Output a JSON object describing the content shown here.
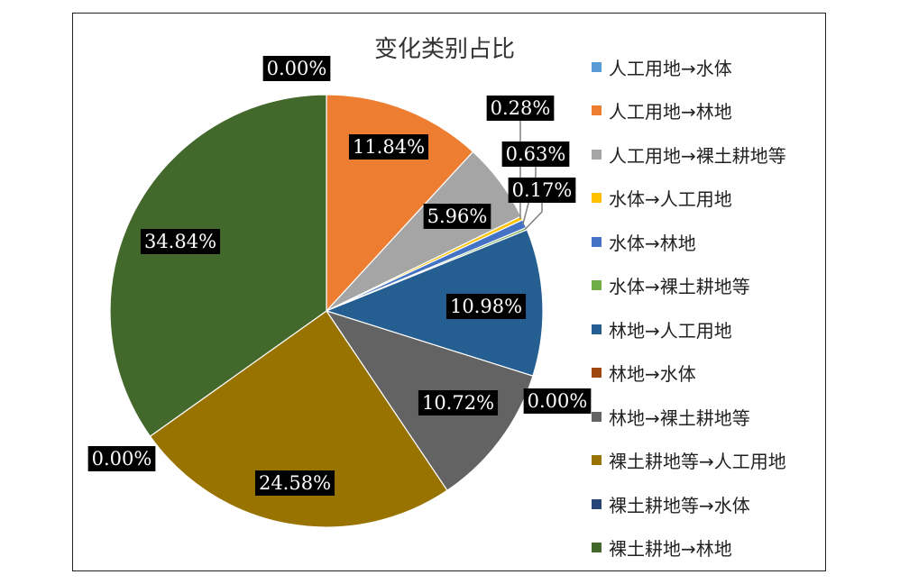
{
  "chart_data": {
    "type": "pie",
    "title": "变化类别占比",
    "legend_position": "right",
    "slices": [
      {
        "label": "人工用地→水体",
        "value": 0.0,
        "display": "0.00%",
        "color": "#5b9bd5"
      },
      {
        "label": "人工用地→林地",
        "value": 11.84,
        "display": "11.84%",
        "color": "#ed7d31"
      },
      {
        "label": "人工用地→裸土耕地等",
        "value": 5.96,
        "display": "5.96%",
        "color": "#a5a5a5"
      },
      {
        "label": "水体→人工用地",
        "value": 0.28,
        "display": "0.28%",
        "color": "#ffc000"
      },
      {
        "label": "水体→林地",
        "value": 0.63,
        "display": "0.63%",
        "color": "#4472c4"
      },
      {
        "label": "水体→裸土耕地等",
        "value": 0.17,
        "display": "0.17%",
        "color": "#70ad47"
      },
      {
        "label": "林地→人工用地",
        "value": 10.98,
        "display": "10.98%",
        "color": "#255e91"
      },
      {
        "label": "林地→水体",
        "value": 0.0,
        "display": "0.00%",
        "color": "#9e480e"
      },
      {
        "label": "林地→裸土耕地等",
        "value": 10.72,
        "display": "10.72%",
        "color": "#636363"
      },
      {
        "label": "裸土耕地等→人工用地",
        "value": 24.58,
        "display": "24.58%",
        "color": "#997300"
      },
      {
        "label": "裸土耕地等→水体",
        "value": 0.0,
        "display": "0.00%",
        "color": "#264478"
      },
      {
        "label": "裸土耕地→林地",
        "value": 34.84,
        "display": "34.84%",
        "color": "#43682b"
      }
    ]
  }
}
